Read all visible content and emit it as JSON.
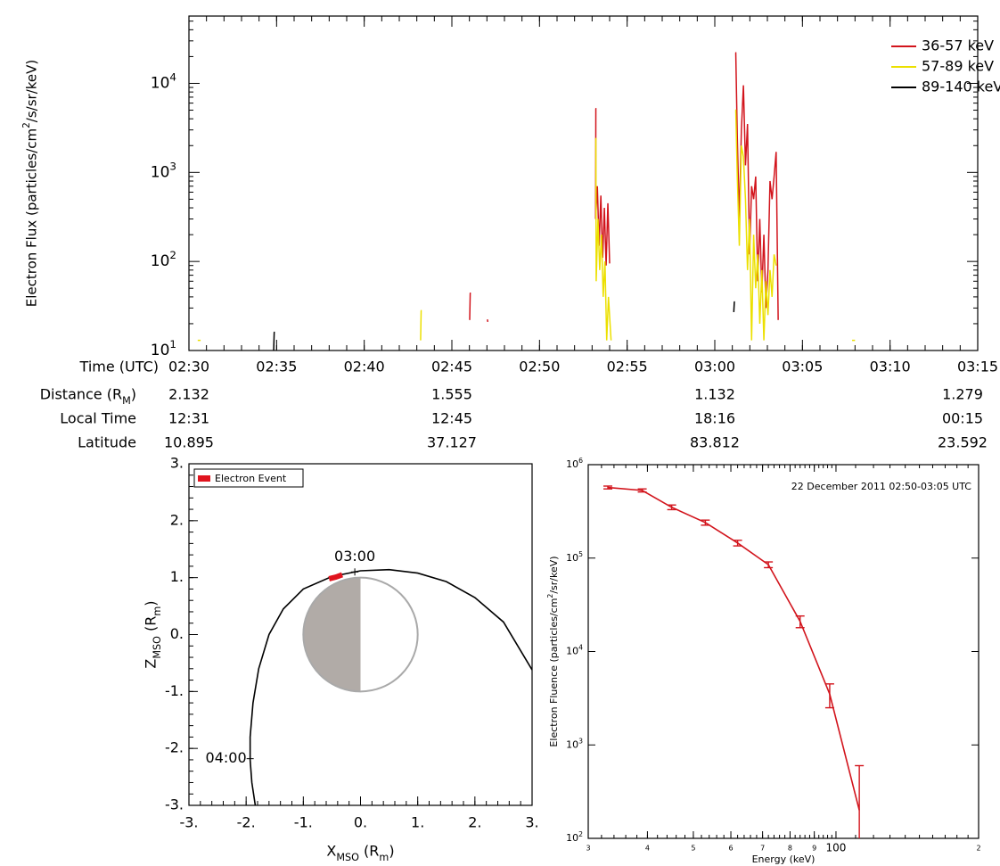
{
  "chart_data": [
    {
      "type": "line",
      "y_label": "Electron Flux (particles/cm^{2}/s/sr/keV)",
      "x_label": "Time (UTC)",
      "log_y": true,
      "legend": "upper right",
      "xlim": [
        "02:30",
        "03:15"
      ],
      "xticks": [
        "02:30",
        "02:35",
        "02:40",
        "02:45",
        "02:50",
        "02:55",
        "03:00",
        "03:05",
        "03:10",
        "03:15"
      ],
      "ylim": [
        10,
        57000
      ],
      "yticks": [
        {
          "value": 10,
          "label": "10^{1}"
        },
        {
          "value": 100,
          "label": "10^{2}"
        },
        {
          "value": 1000,
          "label": "10^{3}"
        },
        {
          "value": 10000,
          "label": "10^{4}"
        }
      ],
      "series": [
        {
          "name": "36-57 keV",
          "color": "#d2141c",
          "x": [
            "02:46:01",
            "02:46:01",
            "02:46:30",
            "02:47:00",
            "02:47:03",
            "02:50:00",
            "02:53:11",
            "02:53:12",
            "02:53:18",
            "02:53:24",
            "02:53:30",
            "02:53:36",
            "02:53:42",
            "02:53:48",
            "02:53:54",
            "02:54:00",
            "02:58:00",
            "03:01:10",
            "03:01:17",
            "03:01:24",
            "03:01:31",
            "03:01:38",
            "03:01:45",
            "03:01:52",
            "03:01:59",
            "03:02:06",
            "03:02:13",
            "03:02:20",
            "03:02:27",
            "03:02:34",
            "03:02:41",
            "03:02:48",
            "03:02:55",
            "03:03:02",
            "03:03:09",
            "03:03:16",
            "03:03:23",
            "03:03:30",
            "03:03:37"
          ],
          "values": [
            44,
            22,
            null,
            22,
            21,
            null,
            5200,
            300,
            700,
            150,
            550,
            110,
            400,
            90,
            450,
            95,
            null,
            22000,
            2500,
            300,
            3000,
            9500,
            1200,
            3500,
            120,
            700,
            500,
            900,
            60,
            300,
            45,
            200,
            30,
            80,
            800,
            500,
            900,
            1700,
            22
          ]
        },
        {
          "name": "57-89 keV",
          "color": "#ece000",
          "x": [
            "02:30:30",
            "02:30:40",
            "02:35:00",
            "02:43:13",
            "02:43:13",
            "02:46:00",
            "02:53:11",
            "02:53:14",
            "02:53:20",
            "02:53:26",
            "02:53:32",
            "02:53:38",
            "02:53:44",
            "02:53:50",
            "02:53:56",
            "02:54:05",
            "02:58:00",
            "03:01:10",
            "03:01:17",
            "03:01:24",
            "03:01:31",
            "03:01:38",
            "03:01:45",
            "03:01:52",
            "03:01:59",
            "03:02:06",
            "03:02:13",
            "03:02:20",
            "03:02:27",
            "03:02:34",
            "03:02:41",
            "03:02:48",
            "03:02:55",
            "03:03:02",
            "03:03:09",
            "03:03:16",
            "03:03:23",
            "03:03:30",
            "03:06:00",
            "03:07:50",
            "03:08:00"
          ],
          "values": [
            13,
            13,
            null,
            28,
            13,
            null,
            2400,
            60,
            300,
            80,
            200,
            40,
            100,
            13,
            40,
            13,
            null,
            5000,
            900,
            150,
            2000,
            1500,
            500,
            80,
            300,
            13,
            200,
            50,
            120,
            20,
            80,
            13,
            60,
            25,
            80,
            40,
            120,
            90,
            null,
            13,
            13
          ]
        },
        {
          "name": "89-140 keV",
          "color": "#000000",
          "x": [
            "02:34:50",
            "02:34:50",
            "02:45:00",
            "03:01:05",
            "03:01:05"
          ],
          "values": [
            16,
            10,
            null,
            35,
            27
          ]
        }
      ],
      "orbit_info": [
        {
          "label": "Distance (R_{M})",
          "values": [
            "2.132",
            "1.555",
            "1.132",
            "1.279"
          ]
        },
        {
          "label": "Local Time",
          "values": [
            "12:31",
            "12:45",
            "18:16",
            "00:15"
          ]
        },
        {
          "label": "Latitude",
          "values": [
            "10.895",
            "37.127",
            "83.812",
            "23.592"
          ]
        }
      ]
    },
    {
      "type": "orbit",
      "x_label": "X_{MSO} (R_{m})",
      "y_label": "Z_{MSO} (R_{m})",
      "xlim": [
        -3,
        3
      ],
      "ylim": [
        -3,
        3
      ],
      "xticks": [
        {
          "value": -3,
          "label": "-3."
        },
        {
          "value": -2,
          "label": "-2."
        },
        {
          "value": -1,
          "label": "-1."
        },
        {
          "value": 0,
          "label": "0."
        },
        {
          "value": 1,
          "label": "1."
        },
        {
          "value": 2,
          "label": "2."
        },
        {
          "value": 3,
          "label": "3."
        }
      ],
      "yticks": [
        {
          "value": -3,
          "label": "-3."
        },
        {
          "value": -2,
          "label": "-2."
        },
        {
          "value": -1,
          "label": "-1."
        },
        {
          "value": 0,
          "label": "0."
        },
        {
          "value": 1,
          "label": "1."
        },
        {
          "value": 2,
          "label": "2."
        },
        {
          "value": 3,
          "label": "3."
        }
      ],
      "planet_radius": 1,
      "orbit": {
        "color": "#000000",
        "x": [
          3.0,
          2.5,
          2.0,
          1.5,
          1.0,
          0.5,
          0.0,
          -0.5,
          -1.0,
          -1.35,
          -1.6,
          -1.78,
          -1.88,
          -1.93,
          -1.93,
          -1.9,
          -1.84
        ],
        "y": [
          -0.62,
          0.22,
          0.65,
          0.93,
          1.08,
          1.14,
          1.12,
          1.02,
          0.8,
          0.45,
          0.0,
          -0.6,
          -1.2,
          -1.8,
          -2.2,
          -2.6,
          -3.0
        ]
      },
      "event": {
        "name": "Electron Event",
        "color": "#e0141e",
        "x": [
          -0.55,
          -0.43,
          -0.32
        ],
        "y": [
          0.98,
          1.01,
          1.05
        ]
      },
      "time_marks": [
        {
          "text": "03:00",
          "x": -0.1,
          "y": 1.1
        },
        {
          "text": "04:00",
          "x": -1.93,
          "y": -2.18
        }
      ]
    },
    {
      "type": "errorbar",
      "title": "22 December 2011 02:50-03:05 UTC",
      "x_label": "Energy (keV)",
      "y_label": "Electron Fluence (particles/cm^{2}/sr/keV)",
      "log_x": true,
      "log_y": true,
      "color": "#d2141c",
      "xlim": [
        30,
        200
      ],
      "ylim": [
        100,
        1000000
      ],
      "xticks": [
        {
          "value": 30,
          "label": "3"
        },
        {
          "value": 40,
          "label": "4"
        },
        {
          "value": 50,
          "label": "5"
        },
        {
          "value": 60,
          "label": "6"
        },
        {
          "value": 70,
          "label": "7"
        },
        {
          "value": 80,
          "label": "8"
        },
        {
          "value": 90,
          "label": "9"
        },
        100,
        {
          "value": 200,
          "label": "2"
        }
      ],
      "yticks": [
        {
          "value": 100,
          "label": "10^{2}"
        },
        {
          "value": 1000,
          "label": "10^{3}"
        },
        {
          "value": 10000,
          "label": "10^{4}"
        },
        {
          "value": 100000,
          "label": "10^{5}"
        },
        {
          "value": 1000000,
          "label": "10^{6}"
        }
      ],
      "x": [
        33,
        39,
        45,
        53,
        62,
        72,
        84,
        97,
        112
      ],
      "values": [
        570000,
        530000,
        350000,
        240000,
        145000,
        85000,
        21000,
        3500,
        200
      ],
      "errors": [
        20000,
        20000,
        20000,
        15000,
        10000,
        6000,
        3000,
        1000,
        400
      ]
    }
  ]
}
